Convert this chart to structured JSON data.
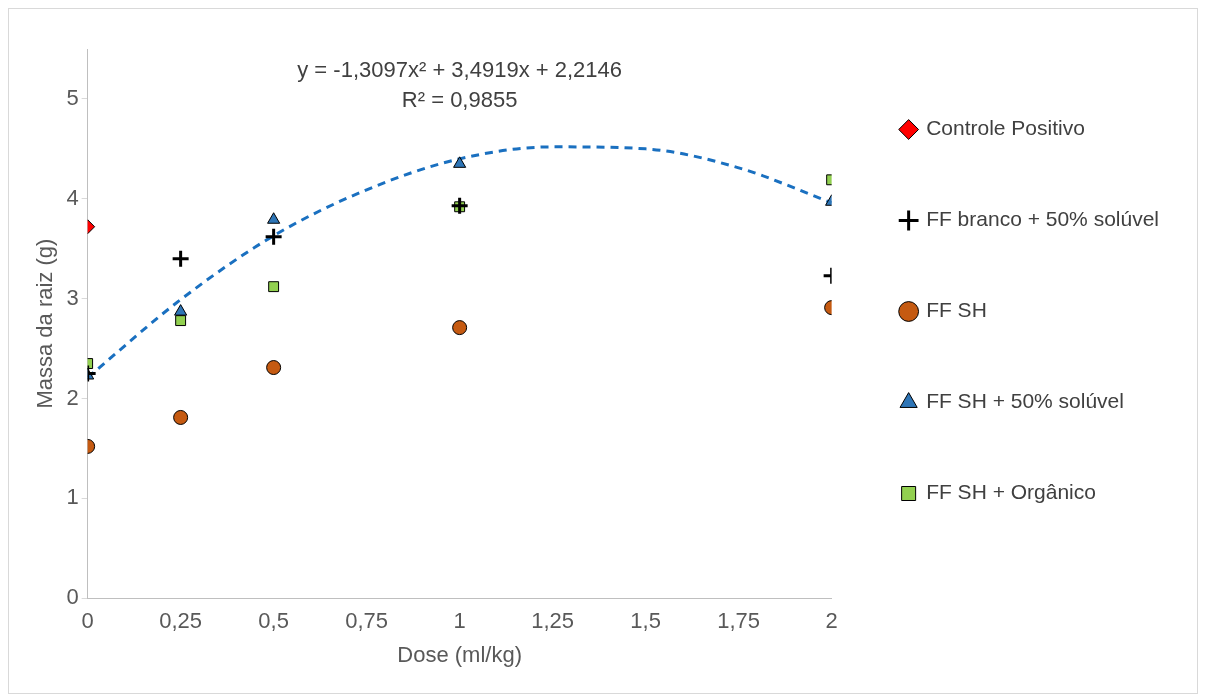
{
  "chart_data": {
    "type": "scatter",
    "xlabel": "Dose (ml/kg)",
    "ylabel": "Massa da raiz (g)",
    "xlim": [
      0,
      2
    ],
    "xticks": [
      0,
      {
        "value": 0.25,
        "label": "0,25"
      },
      {
        "value": 0.5,
        "label": "0,5"
      },
      {
        "value": 0.75,
        "label": "0,75"
      },
      1,
      {
        "value": 1.25,
        "label": "1,25"
      },
      {
        "value": 1.5,
        "label": "1,5"
      },
      {
        "value": 1.75,
        "label": "1,75"
      },
      2
    ],
    "ylim": [
      0,
      5.5
    ],
    "yticks": [
      0,
      1,
      2,
      3,
      4,
      5
    ],
    "grid": false,
    "legend": "right",
    "annotations": [
      "y = -1,3097x² + 3,4919x + 2,2146",
      "R² = 0,9855"
    ],
    "series": [
      {
        "name": "Controle Positivo",
        "color": "#ff0000",
        "marker": "diamond",
        "x": [
          0
        ],
        "values": [
          3.72
        ]
      },
      {
        "name": "FF branco + 50% solúvel",
        "color": "#000000",
        "marker": "cross",
        "x": [
          0,
          0.25,
          0.5,
          1,
          2
        ],
        "values": [
          2.25,
          3.4,
          3.62,
          3.93,
          3.23
        ]
      },
      {
        "name": "FF SH",
        "color": "#c55a11",
        "marker": "circle",
        "x": [
          0,
          0.25,
          0.5,
          1,
          2
        ],
        "values": [
          1.52,
          1.81,
          2.31,
          2.71,
          2.91
        ]
      },
      {
        "name": "FF SH + 50% solúvel",
        "color": "#2e75b6",
        "marker": "triangle",
        "x": [
          0,
          0.25,
          0.5,
          1,
          2
        ],
        "values": [
          2.23,
          2.87,
          3.79,
          4.35,
          3.97
        ]
      },
      {
        "name": "FF SH + Orgânico",
        "color": "#92d050",
        "marker": "square",
        "x": [
          0,
          0.25,
          0.5,
          1,
          2
        ],
        "values": [
          2.35,
          2.78,
          3.12,
          3.92,
          4.19
        ]
      },
      {
        "type": "line",
        "color": "#1a70c0",
        "line_style": "dashed",
        "marker": "none",
        "x": [
          0,
          0.25,
          0.5,
          0.75,
          1,
          1.25,
          1.5,
          1.75,
          2
        ],
        "values": [
          2.21,
          2.99,
          3.63,
          4.09,
          4.4,
          4.52,
          4.5,
          4.31,
          3.96
        ]
      }
    ]
  }
}
